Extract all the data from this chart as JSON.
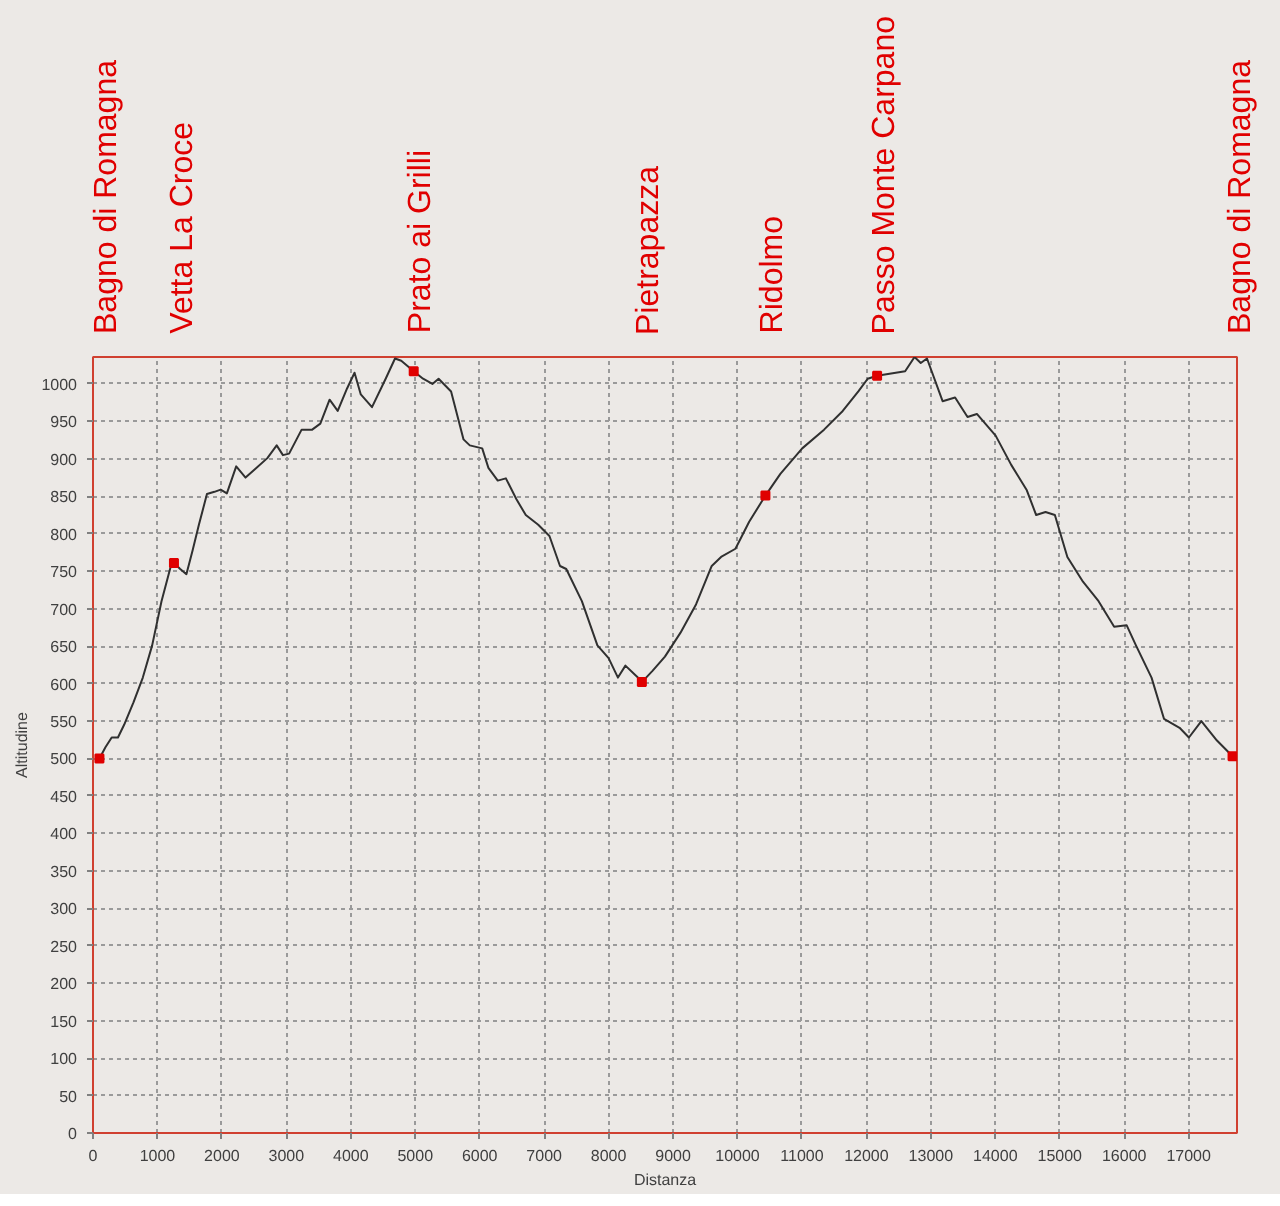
{
  "chart_data": {
    "type": "line",
    "xlabel": "Distanza",
    "ylabel": "Altitudine",
    "x": [
      100,
      193,
      290,
      387,
      483,
      628,
      773,
      918,
      1063,
      1208,
      1256,
      1353,
      1449,
      1546,
      1643,
      1768,
      1884,
      1981,
      2077,
      2222,
      2367,
      2512,
      2705,
      2850,
      2947,
      3043,
      3237,
      3401,
      3527,
      3671,
      3797,
      3942,
      4058,
      4155,
      4329,
      4541,
      4686,
      4783,
      4976,
      5121,
      5266,
      5362,
      5556,
      5749,
      5846,
      6039,
      6135,
      6280,
      6406,
      6570,
      6715,
      6908,
      7082,
      7246,
      7343,
      7585,
      7826,
      8000,
      8145,
      8261,
      8454,
      8516,
      8681,
      8874,
      9116,
      9358,
      9600,
      9745,
      9968,
      10181,
      10433,
      10665,
      11004,
      11343,
      11633,
      11875,
      12020,
      12166,
      12601,
      12747,
      12843,
      12940,
      13182,
      13376,
      13569,
      13714,
      14005,
      14247,
      14489,
      14634,
      14779,
      14924,
      15118,
      15360,
      15602,
      15844,
      16037,
      16182,
      16424,
      16617,
      16859,
      17004,
      17197,
      17439,
      17681
    ],
    "series": [
      {
        "color": "#303030",
        "values": [
          500,
          515,
          528,
          528,
          545,
          575,
          608,
          651,
          710,
          757,
          761,
          753,
          746,
          778,
          812,
          853,
          856,
          859,
          854,
          890,
          875,
          886,
          901,
          918,
          905,
          907,
          939,
          939,
          947,
          979,
          964,
          994,
          1015,
          986,
          969,
          1007,
          1034,
          1031,
          1017,
          1007,
          1000,
          1007,
          990,
          926,
          918,
          914,
          888,
          871,
          874,
          846,
          825,
          812,
          797,
          757,
          753,
          710,
          651,
          634,
          608,
          624,
          608,
          602,
          617,
          636,
          668,
          706,
          757,
          769,
          780,
          816,
          851,
          880,
          914,
          939,
          964,
          990,
          1007,
          1011,
          1017,
          1036,
          1028,
          1034,
          977,
          982,
          956,
          960,
          931,
          892,
          858,
          825,
          829,
          825,
          769,
          736,
          710,
          676,
          678,
          651,
          608,
          553,
          541,
          528,
          550,
          524,
          503
        ]
      },
      {
        "type": "scatter",
        "marker": "square",
        "color": "#e00000",
        "x": [
          100,
          1256,
          4976,
          8516,
          10433,
          12166,
          17681
        ],
        "values": [
          500,
          761,
          1017,
          602,
          851,
          1011,
          503
        ]
      }
    ],
    "annotations": [
      "Bagno di Romagna",
      "Vetta La Croce",
      "Prato ai Grilli",
      "Pietrapazza",
      "Ridolmo",
      "Passo Monte Carpano",
      "Bagno di Romagna"
    ],
    "xlim": [
      0,
      17750
    ],
    "ylim": [
      0,
      1036
    ],
    "xticks": [
      0,
      1000,
      2000,
      3000,
      4000,
      5000,
      6000,
      7000,
      8000,
      9000,
      10000,
      11000,
      12000,
      13000,
      14000,
      15000,
      16000,
      17000
    ],
    "yticks": [
      0,
      50,
      100,
      150,
      200,
      250,
      300,
      350,
      400,
      450,
      500,
      550,
      600,
      650,
      700,
      750,
      800,
      850,
      900,
      950,
      1000
    ],
    "grid": true,
    "line_style": "solid"
  }
}
